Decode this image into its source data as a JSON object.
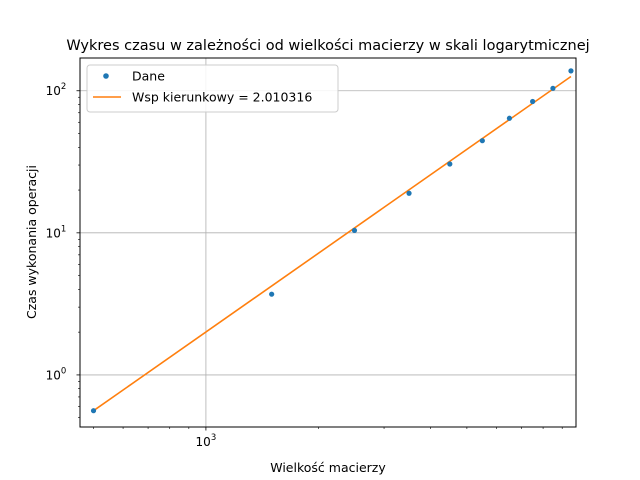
{
  "chart_data": {
    "type": "line",
    "title": "Wykres czasu w zależności od wielkości macierzy w skali logarytmicznej",
    "xlabel": "Wielkość macierzy",
    "ylabel": "Czas wykonania operacji",
    "x_scale": "log",
    "y_scale": "log",
    "xlim": [
      460,
      9800
    ],
    "ylim": [
      0.43,
      170
    ],
    "x_major_ticks": [
      1000
    ],
    "x_minor_ticks": [
      500,
      600,
      700,
      800,
      900,
      2000,
      3000,
      4000,
      5000,
      6000,
      7000,
      8000,
      9000
    ],
    "y_major_ticks": [
      1,
      10,
      100
    ],
    "grid": true,
    "legend_position": "top-left",
    "series": [
      {
        "name": "Dane",
        "kind": "scatter",
        "color": "#1f77b4",
        "x": [
          500,
          1500,
          2500,
          3500,
          4500,
          5500,
          6500,
          7500,
          8500,
          9500
        ],
        "y": [
          0.56,
          3.7,
          10.4,
          19.0,
          30.5,
          44.5,
          64.0,
          84.0,
          104.0,
          138.0
        ]
      },
      {
        "name": "Wsp kierunkowy = 2.010316",
        "kind": "line",
        "color": "#ff7f0e",
        "x": [
          500,
          9500
        ],
        "y": [
          0.56,
          126.0
        ]
      }
    ]
  }
}
